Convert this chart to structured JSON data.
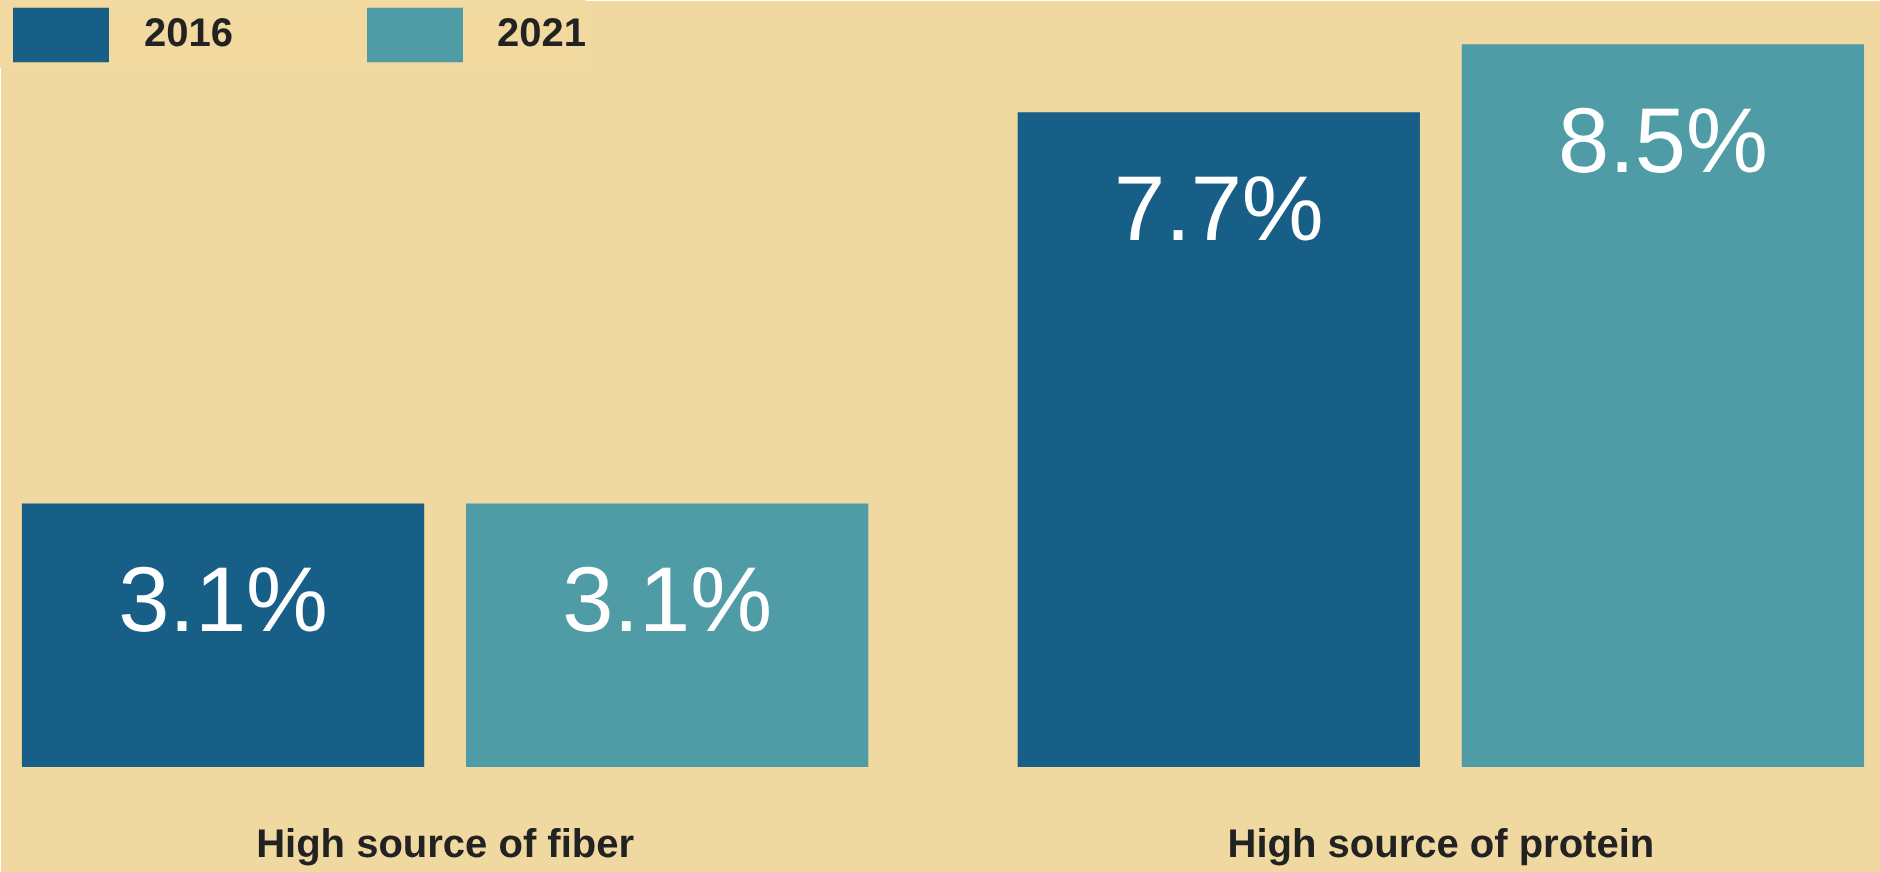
{
  "chart_data": {
    "type": "bar",
    "categories": [
      "High source of fiber",
      "High source of protein"
    ],
    "series": [
      {
        "name": "2016",
        "color": "#175f87",
        "values": [
          3.1,
          7.7
        ],
        "value_labels": [
          "3.1%",
          "7.7%"
        ]
      },
      {
        "name": "2021",
        "color": "#4f9ba6",
        "values": [
          3.1,
          8.5
        ],
        "value_labels": [
          "3.1%",
          "8.5%"
        ]
      }
    ],
    "legend": "top left",
    "grid": false
  }
}
